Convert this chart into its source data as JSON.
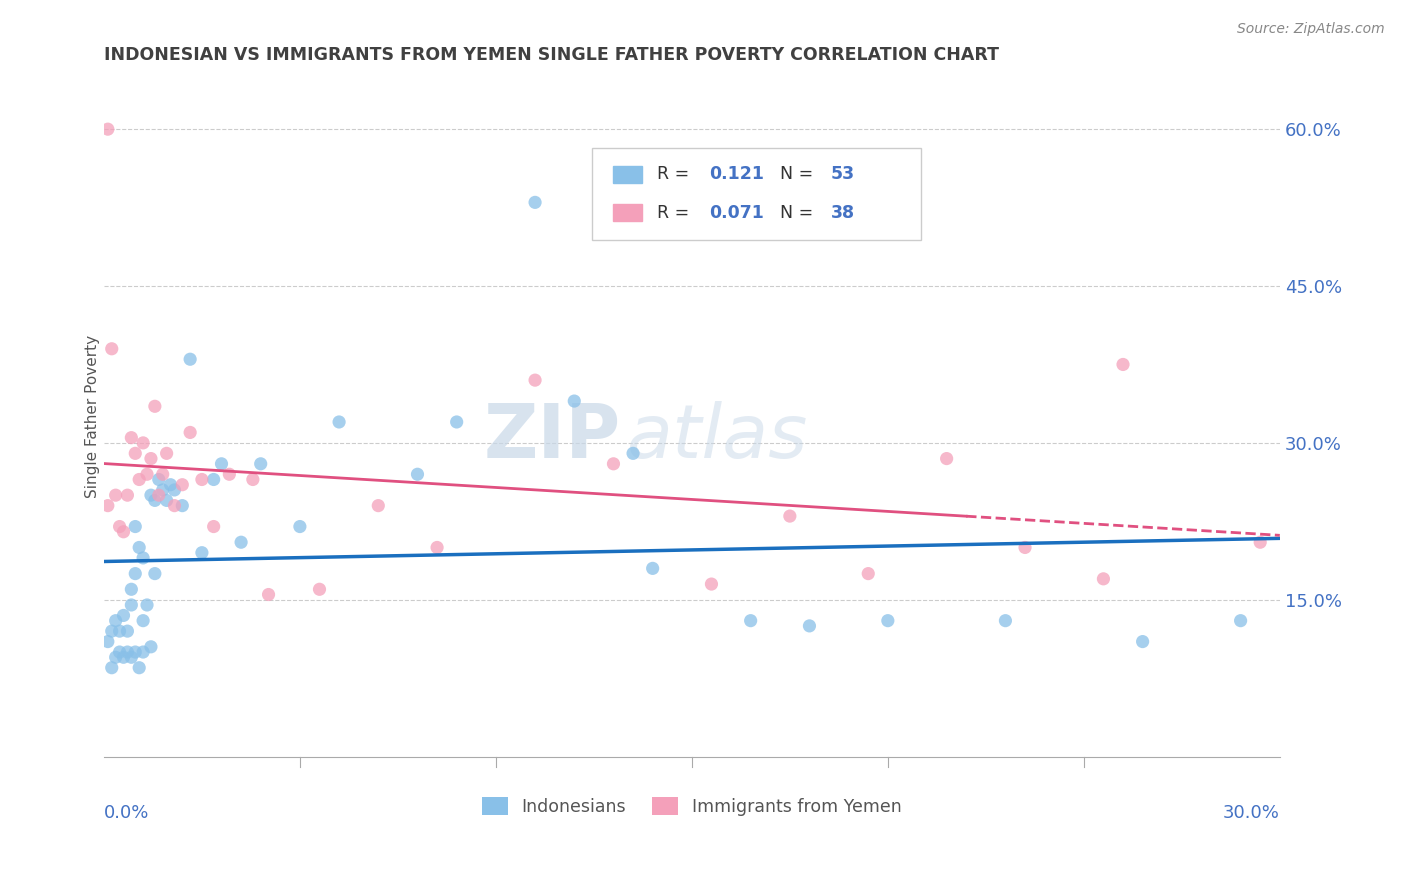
{
  "title": "INDONESIAN VS IMMIGRANTS FROM YEMEN SINGLE FATHER POVERTY CORRELATION CHART",
  "source": "Source: ZipAtlas.com",
  "xlabel_start": "0.0%",
  "xlabel_end": "30.0%",
  "ylabel": "Single Father Poverty",
  "yticks": [
    0.0,
    0.15,
    0.3,
    0.45,
    0.6
  ],
  "ytick_labels": [
    "",
    "15.0%",
    "30.0%",
    "45.0%",
    "60.0%"
  ],
  "xrange": [
    0.0,
    0.3
  ],
  "yrange": [
    0.0,
    0.65
  ],
  "legend_label1": "Indonesians",
  "legend_label2": "Immigrants from Yemen",
  "R1": "0.121",
  "N1": "53",
  "R2": "0.071",
  "N2": "38",
  "color1": "#89C0E8",
  "color2": "#F4A0BA",
  "line_color1": "#1A6FBF",
  "line_color2": "#E05080",
  "title_color": "#404040",
  "axis_label_color": "#4472C4",
  "watermark_zip": "ZIP",
  "watermark_atlas": "atlas",
  "indonesian_x": [
    0.001,
    0.002,
    0.002,
    0.003,
    0.003,
    0.004,
    0.004,
    0.005,
    0.005,
    0.006,
    0.006,
    0.007,
    0.007,
    0.007,
    0.008,
    0.008,
    0.008,
    0.009,
    0.009,
    0.01,
    0.01,
    0.01,
    0.011,
    0.012,
    0.012,
    0.013,
    0.013,
    0.014,
    0.015,
    0.016,
    0.017,
    0.018,
    0.02,
    0.022,
    0.025,
    0.028,
    0.03,
    0.035,
    0.04,
    0.05,
    0.06,
    0.08,
    0.09,
    0.11,
    0.12,
    0.135,
    0.14,
    0.165,
    0.18,
    0.2,
    0.23,
    0.265,
    0.29
  ],
  "indonesian_y": [
    0.11,
    0.085,
    0.12,
    0.095,
    0.13,
    0.1,
    0.12,
    0.095,
    0.135,
    0.1,
    0.12,
    0.095,
    0.145,
    0.16,
    0.1,
    0.175,
    0.22,
    0.085,
    0.2,
    0.1,
    0.13,
    0.19,
    0.145,
    0.105,
    0.25,
    0.175,
    0.245,
    0.265,
    0.255,
    0.245,
    0.26,
    0.255,
    0.24,
    0.38,
    0.195,
    0.265,
    0.28,
    0.205,
    0.28,
    0.22,
    0.32,
    0.27,
    0.32,
    0.53,
    0.34,
    0.29,
    0.18,
    0.13,
    0.125,
    0.13,
    0.13,
    0.11,
    0.13
  ],
  "yemen_x": [
    0.001,
    0.001,
    0.002,
    0.003,
    0.004,
    0.005,
    0.006,
    0.007,
    0.008,
    0.009,
    0.01,
    0.011,
    0.012,
    0.013,
    0.014,
    0.015,
    0.016,
    0.018,
    0.02,
    0.022,
    0.025,
    0.028,
    0.032,
    0.038,
    0.042,
    0.055,
    0.07,
    0.085,
    0.11,
    0.13,
    0.155,
    0.175,
    0.195,
    0.215,
    0.235,
    0.255,
    0.26,
    0.295
  ],
  "yemen_y": [
    0.6,
    0.24,
    0.39,
    0.25,
    0.22,
    0.215,
    0.25,
    0.305,
    0.29,
    0.265,
    0.3,
    0.27,
    0.285,
    0.335,
    0.25,
    0.27,
    0.29,
    0.24,
    0.26,
    0.31,
    0.265,
    0.22,
    0.27,
    0.265,
    0.155,
    0.16,
    0.24,
    0.2,
    0.36,
    0.28,
    0.165,
    0.23,
    0.175,
    0.285,
    0.2,
    0.17,
    0.375,
    0.205
  ]
}
